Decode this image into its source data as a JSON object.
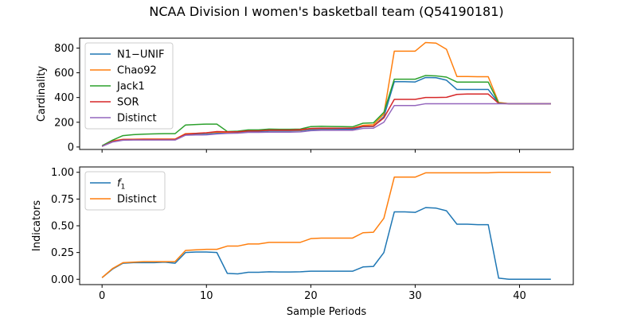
{
  "chart_data": {
    "title": "NCAA Division I women's basketball team (Q54190181)",
    "xlabel": "Sample Periods",
    "x_ticks": [
      0,
      10,
      20,
      30,
      40
    ],
    "xlim": [
      -2.15,
      45.15
    ],
    "panels": [
      {
        "type": "line",
        "ylabel": "Cardinality",
        "ylim": [
          -20,
          880
        ],
        "y_ticks": [
          0,
          200,
          400,
          600,
          800
        ],
        "y_tick_labels": [
          "0",
          "200",
          "400",
          "600",
          "800"
        ],
        "legend_position": "upper-left",
        "x": [
          0,
          1,
          2,
          3,
          4,
          5,
          6,
          7,
          8,
          9,
          10,
          11,
          12,
          13,
          14,
          15,
          16,
          17,
          18,
          19,
          20,
          21,
          22,
          23,
          24,
          25,
          26,
          27,
          28,
          29,
          30,
          31,
          32,
          33,
          34,
          35,
          36,
          37,
          38,
          39,
          40,
          41,
          42,
          43
        ],
        "series": [
          {
            "name": "N1−UNIF",
            "color": "#1f77b4",
            "values": [
              5,
              45,
              60,
              60,
              62,
              62,
              62,
              60,
              98,
              101,
              104,
              110,
              117,
              118,
              125,
              125,
              130,
              130,
              130,
              132,
              140,
              142,
              142,
              142,
              142,
              164,
              166,
              245,
              528,
              528,
              526,
              562,
              560,
              540,
              465,
              465,
              465,
              465,
              355,
              350,
              350,
              350,
              350,
              350
            ]
          },
          {
            "name": "Chao92",
            "color": "#ff7f0e",
            "values": [
              5,
              50,
              62,
              63,
              64,
              64,
              64,
              64,
              108,
              110,
              114,
              120,
              120,
              122,
              130,
              132,
              135,
              135,
              135,
              137,
              148,
              150,
              150,
              152,
              152,
              175,
              180,
              265,
              775,
              775,
              775,
              845,
              840,
              790,
              570,
              570,
              568,
              568,
              360,
              350,
              350,
              350,
              350,
              350
            ]
          },
          {
            "name": "Jack1",
            "color": "#2ca02c",
            "values": [
              10,
              55,
              92,
              100,
              104,
              106,
              108,
              108,
              178,
              182,
              185,
              185,
              125,
              128,
              138,
              138,
              145,
              143,
              143,
              145,
              165,
              167,
              166,
              165,
              163,
              192,
              195,
              280,
              548,
              548,
              548,
              578,
              575,
              565,
              525,
              525,
              525,
              525,
              355,
              350,
              350,
              350,
              350,
              350
            ]
          },
          {
            "name": "SOR",
            "color": "#d62728",
            "values": [
              5,
              45,
              60,
              60,
              61,
              61,
              61,
              62,
              104,
              110,
              115,
              125,
              123,
              123,
              130,
              130,
              137,
              137,
              137,
              140,
              150,
              152,
              152,
              152,
              152,
              167,
              168,
              235,
              385,
              385,
              385,
              400,
              400,
              402,
              425,
              428,
              428,
              428,
              352,
              350,
              350,
              350,
              350,
              350
            ]
          },
          {
            "name": "Distinct",
            "color": "#9467bd",
            "values": [
              5,
              40,
              55,
              56,
              56,
              56,
              56,
              56,
              95,
              97,
              98,
              105,
              110,
              112,
              118,
              118,
              120,
              120,
              120,
              122,
              132,
              135,
              135,
              135,
              135,
              150,
              152,
              200,
              335,
              335,
              335,
              350,
              350,
              350,
              350,
              350,
              350,
              350,
              350,
              350,
              350,
              350,
              350,
              350
            ]
          }
        ]
      },
      {
        "type": "line",
        "ylabel": "Indicators",
        "ylim": [
          -0.05,
          1.05
        ],
        "y_ticks": [
          0,
          0.25,
          0.5,
          0.75,
          1.0
        ],
        "y_tick_labels": [
          "0.00",
          "0.25",
          "0.50",
          "0.75",
          "1.00"
        ],
        "legend_position": "upper-left",
        "x": [
          0,
          1,
          2,
          3,
          4,
          5,
          6,
          7,
          8,
          9,
          10,
          11,
          12,
          13,
          14,
          15,
          16,
          17,
          18,
          19,
          20,
          21,
          22,
          23,
          24,
          25,
          26,
          27,
          28,
          29,
          30,
          31,
          32,
          33,
          34,
          35,
          36,
          37,
          38,
          39,
          40,
          41,
          42,
          43
        ],
        "series": [
          {
            "name": "f1",
            "legend_main": "f",
            "legend_sub": "1",
            "color": "#1f77b4",
            "values": [
              0.015,
              0.095,
              0.15,
              0.155,
              0.155,
              0.155,
              0.16,
              0.15,
              0.25,
              0.255,
              0.255,
              0.25,
              0.055,
              0.05,
              0.065,
              0.065,
              0.07,
              0.068,
              0.068,
              0.07,
              0.075,
              0.075,
              0.075,
              0.075,
              0.075,
              0.115,
              0.12,
              0.25,
              0.63,
              0.63,
              0.625,
              0.67,
              0.665,
              0.64,
              0.515,
              0.515,
              0.51,
              0.51,
              0.01,
              0.0,
              0.0,
              0.0,
              0.0,
              0.0
            ]
          },
          {
            "name": "Distinct",
            "legend_main": "Distinct",
            "color": "#ff7f0e",
            "values": [
              0.015,
              0.1,
              0.155,
              0.16,
              0.165,
              0.165,
              0.165,
              0.165,
              0.27,
              0.275,
              0.28,
              0.28,
              0.31,
              0.31,
              0.33,
              0.33,
              0.345,
              0.345,
              0.345,
              0.345,
              0.38,
              0.385,
              0.385,
              0.385,
              0.385,
              0.435,
              0.44,
              0.57,
              0.955,
              0.955,
              0.955,
              0.995,
              0.995,
              0.995,
              0.995,
              0.995,
              0.995,
              0.995,
              1.0,
              1.0,
              1.0,
              1.0,
              1.0,
              1.0
            ]
          }
        ]
      }
    ]
  }
}
